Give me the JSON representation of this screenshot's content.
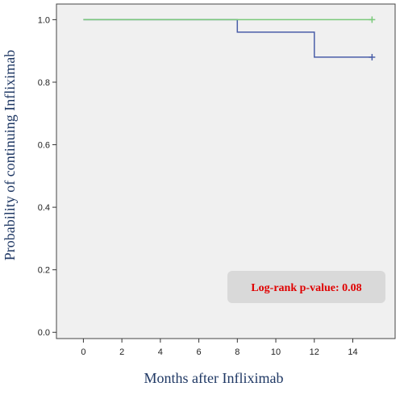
{
  "chart_data": {
    "type": "line",
    "step": true,
    "xlabel": "Months after Infliximab",
    "ylabel": "Probability of continuing Infliximab",
    "xlim": [
      -1.4,
      16.2
    ],
    "ylim": [
      -0.02,
      1.05
    ],
    "x_ticks": [
      0,
      2,
      4,
      6,
      8,
      10,
      12,
      14
    ],
    "y_ticks": [
      0.0,
      0.2,
      0.4,
      0.6,
      0.8,
      1.0
    ],
    "y_tick_labels": [
      "0.0",
      "0.2",
      "0.4",
      "0.6",
      "0.8",
      "1.0"
    ],
    "grid": false,
    "series": [
      {
        "color": "#7ac97a",
        "points": [
          [
            0,
            1.0
          ],
          [
            15,
            1.0
          ]
        ],
        "censored": [
          [
            15,
            1.0
          ]
        ]
      },
      {
        "color": "#4a5ea8",
        "points": [
          [
            0,
            1.0
          ],
          [
            8,
            1.0
          ],
          [
            8,
            0.96
          ],
          [
            12,
            0.96
          ],
          [
            12,
            0.88
          ],
          [
            15,
            0.88
          ]
        ],
        "censored": [
          [
            15,
            0.88
          ]
        ]
      }
    ],
    "annotation": {
      "text": "Log-rank p-value: 0.08",
      "color": "#e00000",
      "box_color": "#d9d9d9"
    },
    "plot_background": "#f0f0f0",
    "frame_color": "#444444"
  }
}
